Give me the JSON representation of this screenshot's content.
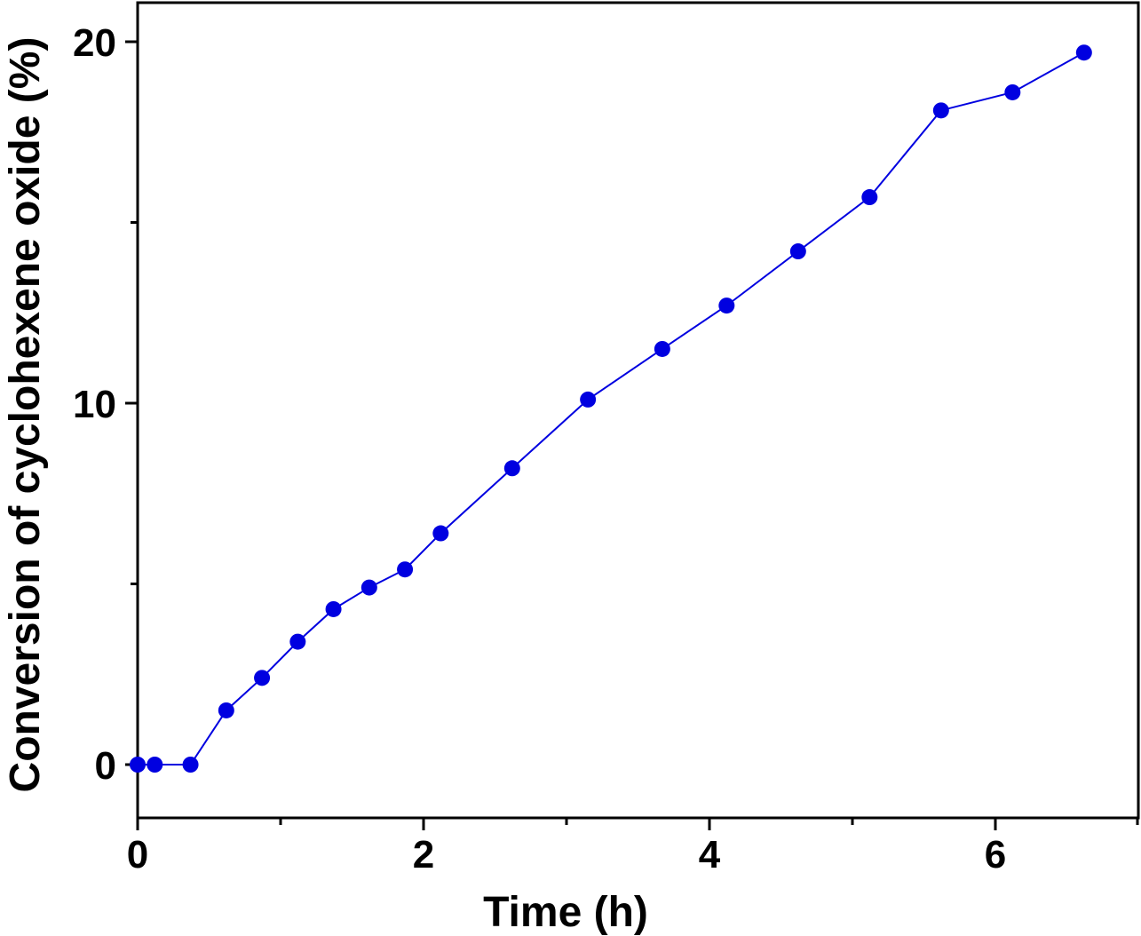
{
  "chart_data": {
    "type": "line",
    "title": "",
    "xlabel": "Time (h)",
    "ylabel": "Conversion of cyclohexene oxide (%)",
    "xlim": [
      0,
      7
    ],
    "ylim": [
      -1.5,
      21
    ],
    "x_ticks_major": [
      0,
      2,
      4,
      6
    ],
    "x_ticks_minor": [
      1,
      3,
      5,
      7
    ],
    "y_ticks_major": [
      0,
      10,
      20
    ],
    "y_ticks_minor": [
      5,
      15
    ],
    "x_tick_labels": [
      "0",
      "2",
      "4",
      "6"
    ],
    "y_tick_labels": [
      "0",
      "10",
      "20"
    ],
    "grid": false,
    "legend": "none",
    "series": [
      {
        "color": "#0000e0",
        "marker": "circle",
        "x": [
          0,
          0.12,
          0.37,
          0.62,
          0.87,
          1.12,
          1.37,
          1.62,
          1.87,
          2.12,
          2.62,
          3.15,
          3.67,
          4.12,
          4.62,
          5.12,
          5.62,
          6.12,
          6.62
        ],
        "y": [
          0,
          0,
          0,
          1.5,
          2.4,
          3.4,
          4.3,
          4.9,
          5.4,
          6.4,
          8.2,
          10.1,
          11.5,
          12.7,
          14.2,
          15.7,
          18.1,
          18.6,
          19.7
        ]
      }
    ]
  }
}
